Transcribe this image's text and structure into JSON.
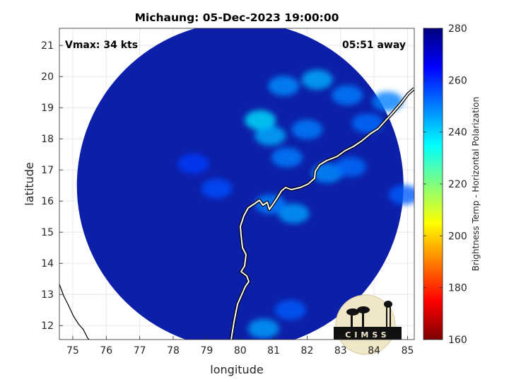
{
  "chart_data": {
    "type": "heatmap",
    "title": "Michaung: 05-Dec-2023 19:00:00",
    "xlabel": "longitude",
    "ylabel": "latitude",
    "xlim": [
      74.6,
      85.2
    ],
    "ylim": [
      11.55,
      21.55
    ],
    "xticks": [
      75,
      76,
      77,
      78,
      79,
      80,
      81,
      82,
      83,
      84,
      85
    ],
    "yticks": [
      12,
      13,
      14,
      15,
      16,
      17,
      18,
      19,
      20,
      21
    ],
    "grid": true,
    "annotations": {
      "top_left": "Vmax: 34 kts",
      "top_right": "05:51 away"
    },
    "swath": {
      "center_lon": 80.0,
      "center_lat": 16.5,
      "radius_deg": 5.25
    },
    "colorbar": {
      "label": "Brightness Temp - Horizontal Polarization",
      "range": [
        160,
        280
      ],
      "ticks": [
        280,
        260,
        240,
        220,
        200,
        180,
        160
      ],
      "colormap": "jet"
    },
    "convection_features": [
      {
        "lon": 82.3,
        "lat": 19.9,
        "tb": 244
      },
      {
        "lon": 83.2,
        "lat": 19.4,
        "tb": 250
      },
      {
        "lon": 81.3,
        "lat": 19.7,
        "tb": 248
      },
      {
        "lon": 80.6,
        "lat": 18.6,
        "tb": 238
      },
      {
        "lon": 80.9,
        "lat": 18.1,
        "tb": 244
      },
      {
        "lon": 82.0,
        "lat": 18.3,
        "tb": 250
      },
      {
        "lon": 83.8,
        "lat": 18.5,
        "tb": 252
      },
      {
        "lon": 84.4,
        "lat": 19.2,
        "tb": 250
      },
      {
        "lon": 81.4,
        "lat": 17.4,
        "tb": 250
      },
      {
        "lon": 82.6,
        "lat": 16.9,
        "tb": 248
      },
      {
        "lon": 83.3,
        "lat": 17.1,
        "tb": 252
      },
      {
        "lon": 81.6,
        "lat": 15.6,
        "tb": 246
      },
      {
        "lon": 80.9,
        "lat": 15.9,
        "tb": 250
      },
      {
        "lon": 84.9,
        "lat": 16.2,
        "tb": 254
      },
      {
        "lon": 80.7,
        "lat": 11.9,
        "tb": 246
      },
      {
        "lon": 81.5,
        "lat": 12.5,
        "tb": 254
      },
      {
        "lon": 79.3,
        "lat": 16.4,
        "tb": 256
      },
      {
        "lon": 78.6,
        "lat": 17.2,
        "tb": 258
      }
    ]
  },
  "logo": {
    "text": "CIMSS"
  },
  "colors": {
    "jet": [
      "#00007f",
      "#0000ff",
      "#007fff",
      "#00ffff",
      "#7fff7f",
      "#ffff00",
      "#ff7f00",
      "#ff0000",
      "#7f0000"
    ],
    "swath_base": "#0b1fa8",
    "coastline": "#000000"
  }
}
